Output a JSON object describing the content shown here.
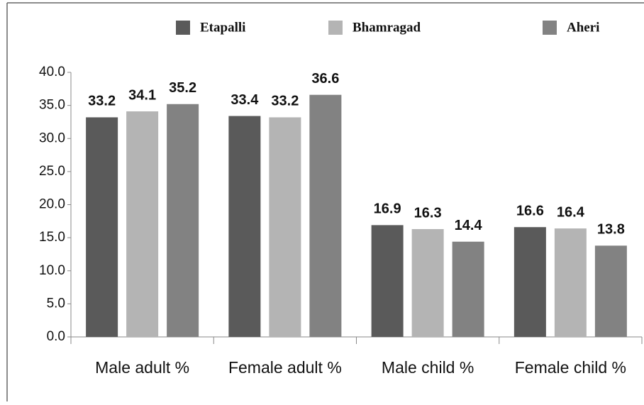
{
  "chart_data": {
    "type": "bar",
    "categories": [
      "Male adult %",
      "Female adult %",
      "Male child %",
      "Female child %"
    ],
    "series": [
      {
        "name": "Etapalli",
        "color": "#5a5a5a",
        "values": [
          33.2,
          33.4,
          16.9,
          16.6
        ]
      },
      {
        "name": "Bhamragad",
        "color": "#b4b4b4",
        "values": [
          34.1,
          33.2,
          16.3,
          16.4
        ]
      },
      {
        "name": "Aheri",
        "color": "#828282",
        "values": [
          35.2,
          36.6,
          14.4,
          13.8
        ]
      }
    ],
    "ylim": [
      0,
      40
    ],
    "yticks": [
      {
        "value": 0,
        "label": "0.0"
      },
      {
        "value": 5,
        "label": "5.0"
      },
      {
        "value": 10,
        "label": "10.0"
      },
      {
        "value": 15,
        "label": "15.0"
      },
      {
        "value": 20,
        "label": "20.0"
      },
      {
        "value": 25,
        "label": "25.0"
      },
      {
        "value": 30,
        "label": "30.0"
      },
      {
        "value": 35,
        "label": "35.0"
      },
      {
        "value": 40,
        "label": "40.0"
      }
    ],
    "grid": false,
    "legend": "top"
  }
}
